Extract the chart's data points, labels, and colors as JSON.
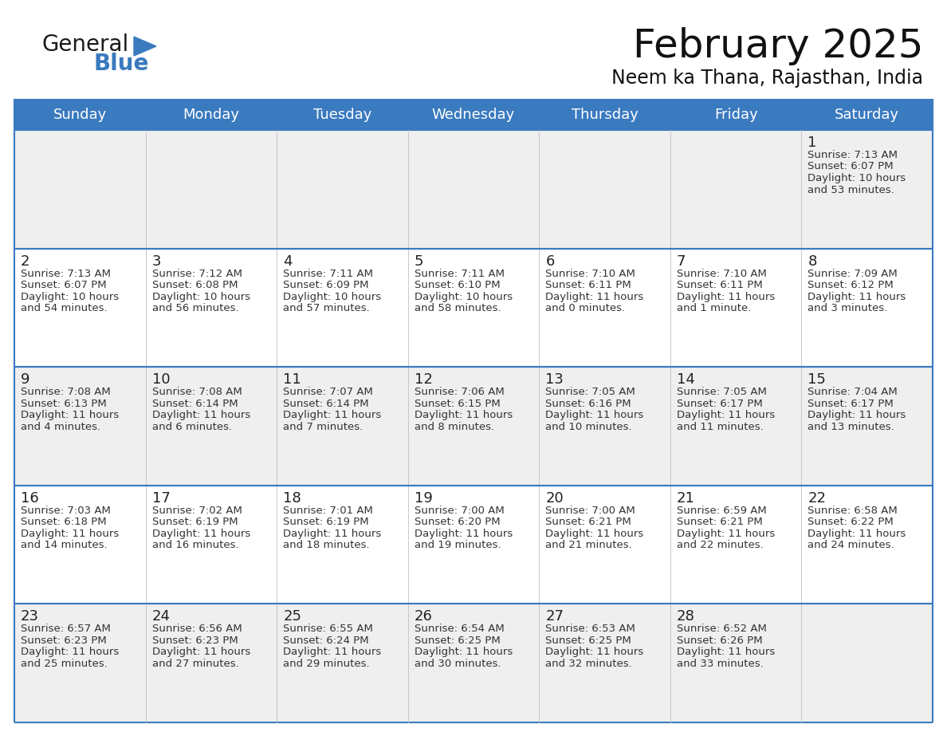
{
  "title": "February 2025",
  "subtitle": "Neem ka Thana, Rajasthan, India",
  "header_color": "#3a7abf",
  "header_text_color": "#ffffff",
  "cell_bg_light": "#efefef",
  "cell_bg_white": "#ffffff",
  "grid_line_color": "#3a7abf",
  "day_headers": [
    "Sunday",
    "Monday",
    "Tuesday",
    "Wednesday",
    "Thursday",
    "Friday",
    "Saturday"
  ],
  "weeks": [
    [
      null,
      null,
      null,
      null,
      null,
      null,
      {
        "day": 1,
        "sunrise": "7:13 AM",
        "sunset": "6:07 PM",
        "daylight": "10 hours\nand 53 minutes."
      }
    ],
    [
      {
        "day": 2,
        "sunrise": "7:13 AM",
        "sunset": "6:07 PM",
        "daylight": "10 hours\nand 54 minutes."
      },
      {
        "day": 3,
        "sunrise": "7:12 AM",
        "sunset": "6:08 PM",
        "daylight": "10 hours\nand 56 minutes."
      },
      {
        "day": 4,
        "sunrise": "7:11 AM",
        "sunset": "6:09 PM",
        "daylight": "10 hours\nand 57 minutes."
      },
      {
        "day": 5,
        "sunrise": "7:11 AM",
        "sunset": "6:10 PM",
        "daylight": "10 hours\nand 58 minutes."
      },
      {
        "day": 6,
        "sunrise": "7:10 AM",
        "sunset": "6:11 PM",
        "daylight": "11 hours\nand 0 minutes."
      },
      {
        "day": 7,
        "sunrise": "7:10 AM",
        "sunset": "6:11 PM",
        "daylight": "11 hours\nand 1 minute."
      },
      {
        "day": 8,
        "sunrise": "7:09 AM",
        "sunset": "6:12 PM",
        "daylight": "11 hours\nand 3 minutes."
      }
    ],
    [
      {
        "day": 9,
        "sunrise": "7:08 AM",
        "sunset": "6:13 PM",
        "daylight": "11 hours\nand 4 minutes."
      },
      {
        "day": 10,
        "sunrise": "7:08 AM",
        "sunset": "6:14 PM",
        "daylight": "11 hours\nand 6 minutes."
      },
      {
        "day": 11,
        "sunrise": "7:07 AM",
        "sunset": "6:14 PM",
        "daylight": "11 hours\nand 7 minutes."
      },
      {
        "day": 12,
        "sunrise": "7:06 AM",
        "sunset": "6:15 PM",
        "daylight": "11 hours\nand 8 minutes."
      },
      {
        "day": 13,
        "sunrise": "7:05 AM",
        "sunset": "6:16 PM",
        "daylight": "11 hours\nand 10 minutes."
      },
      {
        "day": 14,
        "sunrise": "7:05 AM",
        "sunset": "6:17 PM",
        "daylight": "11 hours\nand 11 minutes."
      },
      {
        "day": 15,
        "sunrise": "7:04 AM",
        "sunset": "6:17 PM",
        "daylight": "11 hours\nand 13 minutes."
      }
    ],
    [
      {
        "day": 16,
        "sunrise": "7:03 AM",
        "sunset": "6:18 PM",
        "daylight": "11 hours\nand 14 minutes."
      },
      {
        "day": 17,
        "sunrise": "7:02 AM",
        "sunset": "6:19 PM",
        "daylight": "11 hours\nand 16 minutes."
      },
      {
        "day": 18,
        "sunrise": "7:01 AM",
        "sunset": "6:19 PM",
        "daylight": "11 hours\nand 18 minutes."
      },
      {
        "day": 19,
        "sunrise": "7:00 AM",
        "sunset": "6:20 PM",
        "daylight": "11 hours\nand 19 minutes."
      },
      {
        "day": 20,
        "sunrise": "7:00 AM",
        "sunset": "6:21 PM",
        "daylight": "11 hours\nand 21 minutes."
      },
      {
        "day": 21,
        "sunrise": "6:59 AM",
        "sunset": "6:21 PM",
        "daylight": "11 hours\nand 22 minutes."
      },
      {
        "day": 22,
        "sunrise": "6:58 AM",
        "sunset": "6:22 PM",
        "daylight": "11 hours\nand 24 minutes."
      }
    ],
    [
      {
        "day": 23,
        "sunrise": "6:57 AM",
        "sunset": "6:23 PM",
        "daylight": "11 hours\nand 25 minutes."
      },
      {
        "day": 24,
        "sunrise": "6:56 AM",
        "sunset": "6:23 PM",
        "daylight": "11 hours\nand 27 minutes."
      },
      {
        "day": 25,
        "sunrise": "6:55 AM",
        "sunset": "6:24 PM",
        "daylight": "11 hours\nand 29 minutes."
      },
      {
        "day": 26,
        "sunrise": "6:54 AM",
        "sunset": "6:25 PM",
        "daylight": "11 hours\nand 30 minutes."
      },
      {
        "day": 27,
        "sunrise": "6:53 AM",
        "sunset": "6:25 PM",
        "daylight": "11 hours\nand 32 minutes."
      },
      {
        "day": 28,
        "sunrise": "6:52 AM",
        "sunset": "6:26 PM",
        "daylight": "11 hours\nand 33 minutes."
      },
      null
    ]
  ],
  "logo_color_general": "#1a1a1a",
  "logo_color_blue": "#3a7abf",
  "logo_triangle_color": "#3a7abf",
  "title_fontsize": 36,
  "subtitle_fontsize": 17,
  "header_fontsize": 13,
  "day_num_fontsize": 13,
  "cell_text_fontsize": 9.5
}
